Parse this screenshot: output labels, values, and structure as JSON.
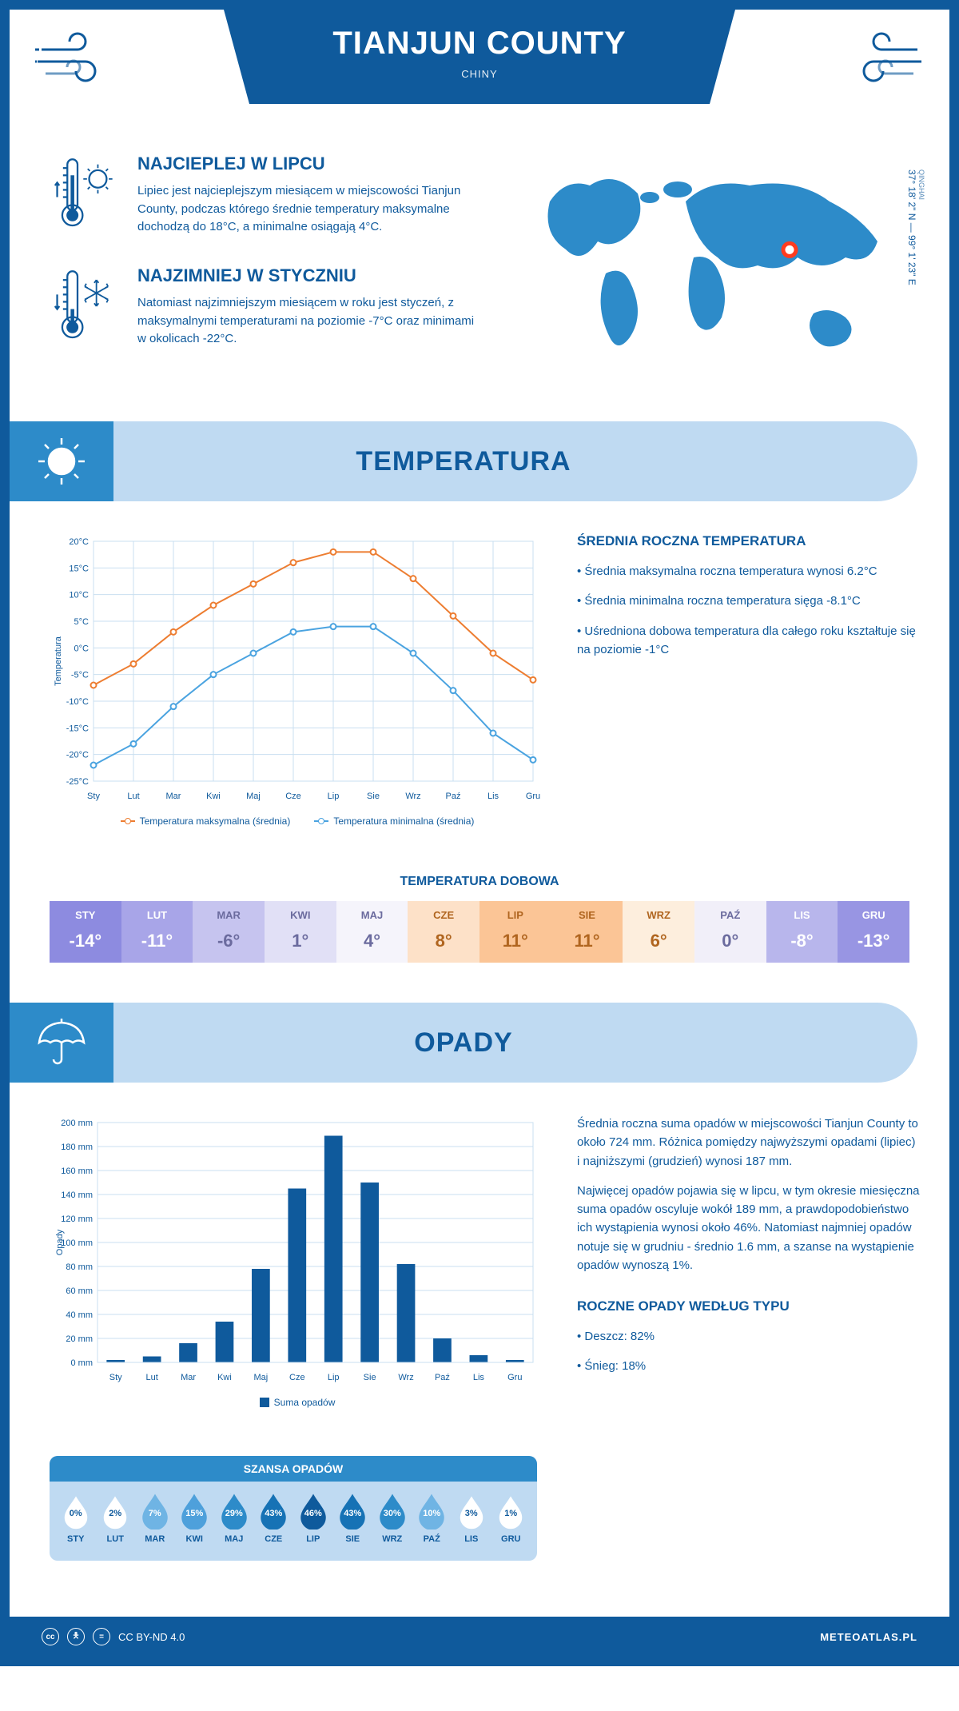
{
  "colors": {
    "primary": "#0f5a9c",
    "light_blue": "#bfdaf2",
    "mid_blue": "#2d8bc9",
    "orange": "#ed7d31",
    "line_blue": "#4aa3e0",
    "grid": "#c9dff0",
    "white": "#ffffff",
    "marker_red": "#ff3b1f"
  },
  "header": {
    "title": "TIANJUN COUNTY",
    "subtitle": "CHINY"
  },
  "coords": {
    "region": "QINGHAI",
    "text": "37° 18' 2\" N — 99° 1' 23\" E"
  },
  "intro": {
    "warm": {
      "title": "NAJCIEPLEJ W LIPCU",
      "text": "Lipiec jest najcieplejszym miesiącem w miejscowości Tianjun County, podczas którego średnie temperatury maksymalne dochodzą do 18°C, a minimalne osiągają 4°C."
    },
    "cold": {
      "title": "NAJZIMNIEJ W STYCZNIU",
      "text": "Natomiast najzimniejszym miesiącem w roku jest styczeń, z maksymalnymi temperaturami na poziomie -7°C oraz minimami w okolicach -22°C."
    }
  },
  "map": {
    "marker": {
      "cx_pct": 70,
      "cy_pct": 43
    }
  },
  "temperature_section": {
    "title": "TEMPERATURA",
    "chart": {
      "type": "line",
      "months": [
        "Sty",
        "Lut",
        "Mar",
        "Kwi",
        "Maj",
        "Cze",
        "Lip",
        "Sie",
        "Wrz",
        "Paź",
        "Lis",
        "Gru"
      ],
      "tmax": [
        -7,
        -3,
        3,
        8,
        12,
        16,
        18,
        18,
        13,
        6,
        -1,
        -6
      ],
      "tmin": [
        -22,
        -18,
        -11,
        -5,
        -1,
        3,
        4,
        4,
        -1,
        -8,
        -16,
        -21
      ],
      "tmax_color": "#ed7d31",
      "tmin_color": "#4aa3e0",
      "ylim": [
        -25,
        20
      ],
      "ytick_step": 5,
      "y_unit": "°C",
      "ylabel": "Temperatura",
      "grid_color": "#c9dff0",
      "legend": {
        "max": "Temperatura maksymalna (średnia)",
        "min": "Temperatura minimalna (średnia)"
      }
    },
    "side": {
      "title": "ŚREDNIA ROCZNA TEMPERATURA",
      "items": [
        "Średnia maksymalna roczna temperatura wynosi 6.2°C",
        "Średnia minimalna roczna temperatura sięga -8.1°C",
        "Uśredniona dobowa temperatura dla całego roku kształtuje się na poziomie -1°C"
      ]
    },
    "daily": {
      "title": "TEMPERATURA DOBOWA",
      "months": [
        "STY",
        "LUT",
        "MAR",
        "KWI",
        "MAJ",
        "CZE",
        "LIP",
        "SIE",
        "WRZ",
        "PAŹ",
        "LIS",
        "GRU"
      ],
      "values": [
        -14,
        -11,
        -6,
        1,
        4,
        8,
        11,
        11,
        6,
        0,
        -8,
        -13
      ],
      "cell_colors": [
        "#8d8be0",
        "#a8a5e8",
        "#c6c4ef",
        "#e1e0f6",
        "#f5f4fb",
        "#fde1c8",
        "#fbc596",
        "#fbc596",
        "#fdeedd",
        "#f1eff9",
        "#b8b6ec",
        "#9895e3"
      ],
      "text_colors": [
        "#ffffff",
        "#ffffff",
        "#6b6b9e",
        "#6b6b9e",
        "#6b6b9e",
        "#b0651f",
        "#b0651f",
        "#b0651f",
        "#b0651f",
        "#6b6b9e",
        "#ffffff",
        "#ffffff"
      ]
    }
  },
  "precip_section": {
    "title": "OPADY",
    "chart": {
      "type": "bar",
      "months": [
        "Sty",
        "Lut",
        "Mar",
        "Kwi",
        "Maj",
        "Cze",
        "Lip",
        "Sie",
        "Wrz",
        "Paź",
        "Lis",
        "Gru"
      ],
      "values": [
        2,
        5,
        16,
        34,
        78,
        145,
        189,
        150,
        82,
        20,
        6,
        2
      ],
      "bar_color": "#0f5a9c",
      "ylim": [
        0,
        200
      ],
      "ytick_step": 20,
      "y_unit": " mm",
      "ylabel": "Opady",
      "grid_color": "#c9dff0",
      "legend": "Suma opadów"
    },
    "side": {
      "p1": "Średnia roczna suma opadów w miejscowości Tianjun County to około 724 mm. Różnica pomiędzy najwyższymi opadami (lipiec) i najniższymi (grudzień) wynosi 187 mm.",
      "p2": "Najwięcej opadów pojawia się w lipcu, w tym okresie miesięczna suma opadów oscyluje wokół 189 mm, a prawdopodobieństwo ich wystąpienia wynosi około 46%. Natomiast najmniej opadów notuje się w grudniu - średnio 1.6 mm, a szanse na wystąpienie opadów wynoszą 1%.",
      "type_title": "ROCZNE OPADY WEDŁUG TYPU",
      "types": [
        "Deszcz: 82%",
        "Śnieg: 18%"
      ]
    },
    "chance": {
      "title": "SZANSA OPADÓW",
      "months": [
        "STY",
        "LUT",
        "MAR",
        "KWI",
        "MAJ",
        "CZE",
        "LIP",
        "SIE",
        "WRZ",
        "PAŹ",
        "LIS",
        "GRU"
      ],
      "pct": [
        0,
        2,
        7,
        15,
        29,
        43,
        46,
        43,
        30,
        10,
        3,
        1
      ],
      "fill_colors": [
        "#ffffff",
        "#ffffff",
        "#6fb4e4",
        "#4ea0db",
        "#2d8bc9",
        "#1672b5",
        "#0f5a9c",
        "#1672b5",
        "#2d8bc9",
        "#6fb4e4",
        "#ffffff",
        "#ffffff"
      ],
      "text_colors": [
        "#0f5a9c",
        "#0f5a9c",
        "#ffffff",
        "#ffffff",
        "#ffffff",
        "#ffffff",
        "#ffffff",
        "#ffffff",
        "#ffffff",
        "#ffffff",
        "#0f5a9c",
        "#0f5a9c"
      ]
    }
  },
  "footer": {
    "license": "CC BY-ND 4.0",
    "site": "METEOATLAS.PL"
  }
}
